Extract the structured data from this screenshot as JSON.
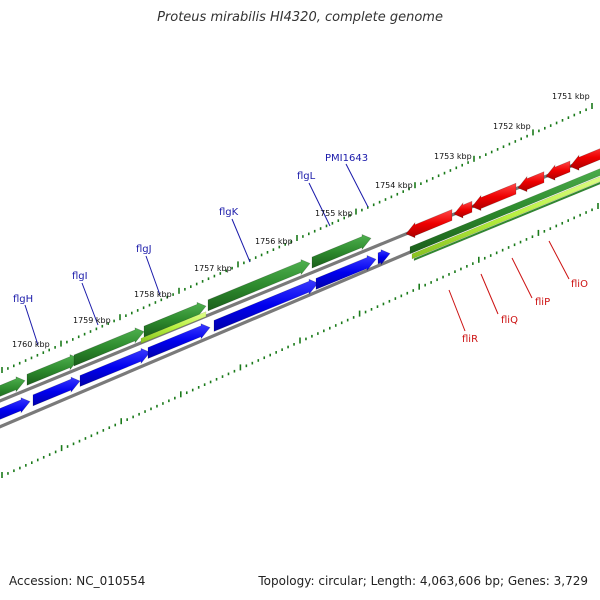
{
  "title": "Proteus mirabilis HI4320, complete genome",
  "footer": {
    "accession": "Accession: NC_010554",
    "summary": "Topology: circular; Length: 4,063,606 bp; Genes: 3,729"
  },
  "colors": {
    "forward_gene": "#2e8b2e",
    "reverse_gene": "#0000ee",
    "red_gene": "#ee0000",
    "rna_light": "#b8f040",
    "backbone": "#808080",
    "tick": "#1a7a1a",
    "blue_label": "#1a1aaa",
    "red_label": "#cc1111"
  },
  "ruler": {
    "labels": [
      "1751 kbp",
      "1752 kbp",
      "1753 kbp",
      "1754 kbp",
      "1755 kbp",
      "1756 kbp",
      "1757 kbp",
      "1758 kbp",
      "1759 kbp",
      "1760 kbp"
    ]
  },
  "genes": [
    {
      "name": "flgH"
    },
    {
      "name": "flgI"
    },
    {
      "name": "flgJ"
    },
    {
      "name": "flgK"
    },
    {
      "name": "flgL"
    },
    {
      "name": "PMI1643"
    },
    {
      "name": "fliO"
    },
    {
      "name": "fliP"
    },
    {
      "name": "fliQ"
    },
    {
      "name": "fliR"
    }
  ]
}
